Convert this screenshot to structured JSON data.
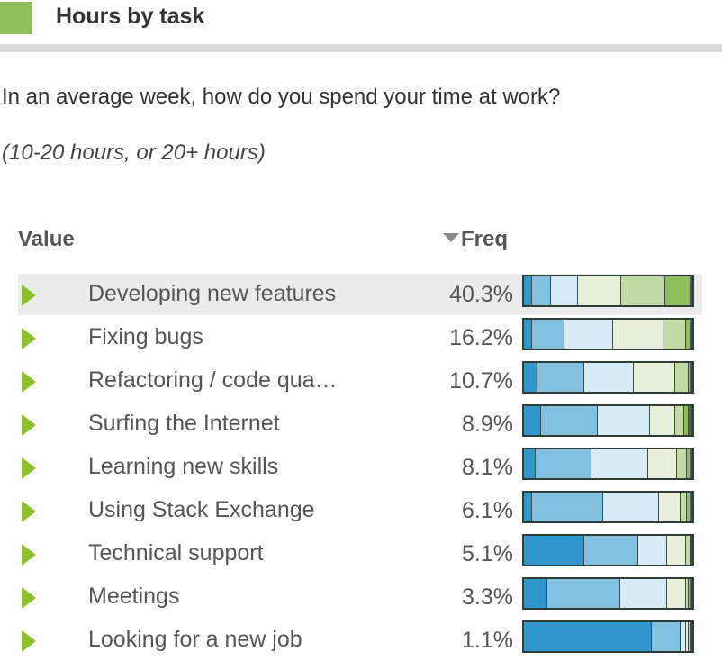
{
  "header": {
    "title": "Hours by task",
    "accent_color": "#8fbf5a"
  },
  "question": "In an average week, how do you spend your time at work?",
  "subtitle": "(10-20 hours, or 20+ hours)",
  "table": {
    "col_value": "Value",
    "col_freq": "Freq",
    "sort_indicator": "sort-desc"
  },
  "segment_colors": [
    "#2f96cc",
    "#82c0e2",
    "#d6ebf5",
    "#e8f0dc",
    "#c2dba4",
    "#8fbf5a",
    "#4f6b3a"
  ],
  "chart_data": {
    "type": "bar",
    "stacked": true,
    "normalized": true,
    "categories": [
      "Developing new features",
      "Fixing bugs",
      "Refactoring / code qua…",
      "Surfing the Internet",
      "Learning new skills",
      "Using Stack Exchange",
      "Technical support",
      "Meetings",
      "Looking for a new job"
    ],
    "freq_labels": [
      "40.3%",
      "16.2%",
      "10.7%",
      "8.9%",
      "8.1%",
      "6.1%",
      "5.1%",
      "3.3%",
      "1.1%"
    ],
    "freq_values": [
      40.3,
      16.2,
      10.7,
      8.9,
      8.1,
      6.1,
      5.1,
      3.3,
      1.1
    ],
    "segments": [
      [
        0.05,
        0.11,
        0.16,
        0.26,
        0.26,
        0.15,
        0.01
      ],
      [
        0.05,
        0.19,
        0.29,
        0.3,
        0.13,
        0.03,
        0.01
      ],
      [
        0.08,
        0.28,
        0.29,
        0.25,
        0.08,
        0.01,
        0.01
      ],
      [
        0.1,
        0.34,
        0.31,
        0.15,
        0.05,
        0.03,
        0.02
      ],
      [
        0.07,
        0.33,
        0.34,
        0.17,
        0.06,
        0.02,
        0.01
      ],
      [
        0.05,
        0.42,
        0.33,
        0.13,
        0.04,
        0.02,
        0.01
      ],
      [
        0.36,
        0.32,
        0.17,
        0.11,
        0.03,
        0.005,
        0.005
      ],
      [
        0.14,
        0.43,
        0.28,
        0.11,
        0.02,
        0.01,
        0.01
      ],
      [
        0.76,
        0.17,
        0.03,
        0.02,
        0.01,
        0.005,
        0.005
      ]
    ]
  }
}
